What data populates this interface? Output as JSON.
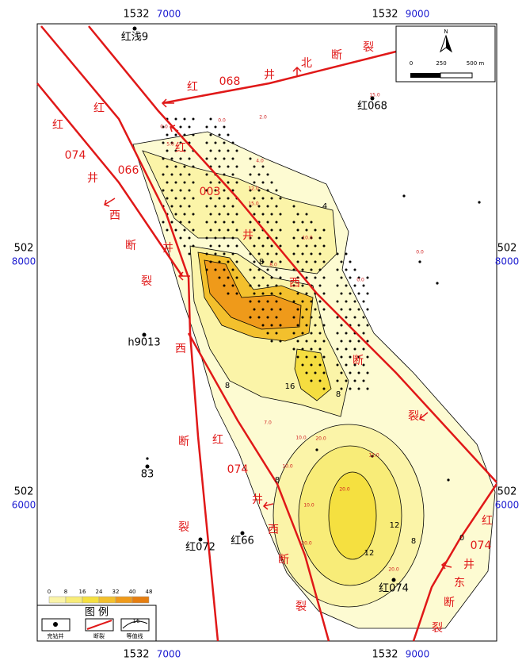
{
  "frame": {
    "top": [
      "1532",
      "7000",
      "1532",
      "9000"
    ],
    "bottom": [
      "1532",
      "7000",
      "1532",
      "9000"
    ],
    "left": [
      "502",
      "8000",
      "502",
      "6000"
    ],
    "right": [
      "502",
      "8000",
      "502",
      "6000"
    ]
  },
  "scale": {
    "north": "N",
    "ticks": [
      "0",
      "250",
      "500 m"
    ]
  },
  "faults": [
    {
      "chars": [
        "红",
        "068",
        "井",
        "北",
        "断",
        "裂"
      ]
    },
    {
      "chars": [
        "红",
        "074",
        "井",
        "西",
        "断",
        "裂"
      ]
    },
    {
      "chars": [
        "红",
        "066",
        "井",
        "西",
        "断",
        "裂"
      ]
    },
    {
      "chars": [
        "红",
        "003",
        "井",
        "西",
        "断",
        "裂"
      ]
    },
    {
      "chars": [
        "红",
        "074",
        "井",
        "西",
        "断",
        "裂"
      ]
    },
    {
      "chars": [
        "红",
        "074",
        "井",
        "东",
        "断",
        "裂"
      ]
    }
  ],
  "wells": [
    "红浅9",
    "红068",
    "h9013",
    "83",
    "红072",
    "红66",
    "红074"
  ],
  "value_labels": [
    "15.0",
    "0.0",
    "0.0",
    "2.0",
    "5.0",
    "4.0",
    "12.0",
    "15.0",
    "10.0",
    "8.0",
    "0.0",
    "0.0",
    "7.0",
    "10.0",
    "20.0",
    "10.0",
    "12.0",
    "20.0",
    "10.0",
    "20.0",
    "20.0"
  ],
  "contour_labels": [
    "8",
    "16",
    "8",
    "8",
    "8",
    "12",
    "8",
    "12",
    "0",
    "4"
  ],
  "legend": {
    "title": "图 例",
    "items": [
      "完钻井",
      "断裂",
      "等值线"
    ],
    "contour_symbol": "16",
    "ramp": [
      0,
      8,
      16,
      24,
      32,
      40,
      48
    ]
  }
}
